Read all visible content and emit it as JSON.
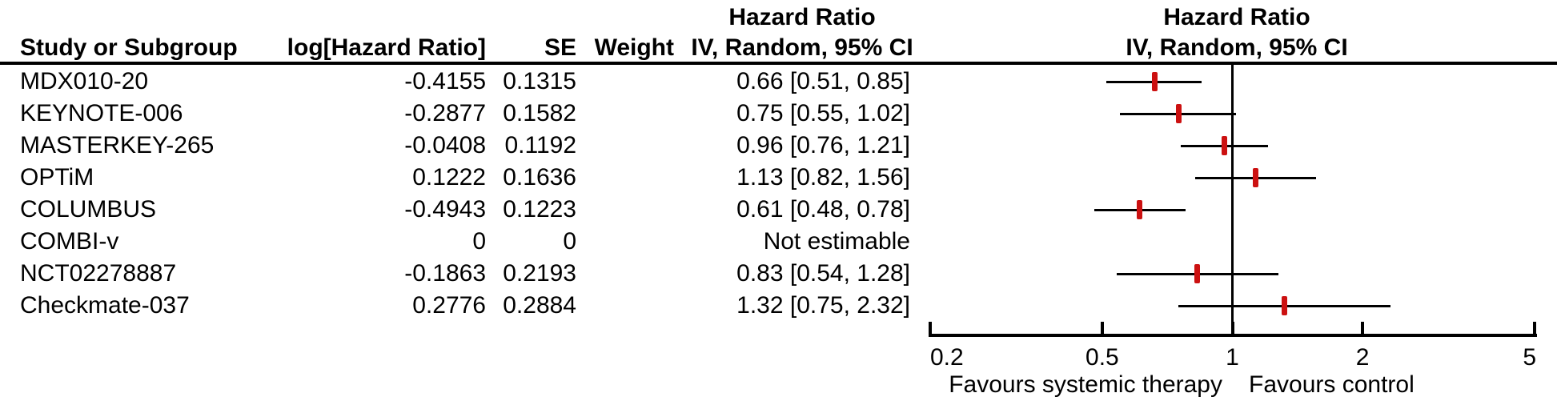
{
  "header": {
    "study": "Study or Subgroup",
    "log_hr": "log[Hazard Ratio]",
    "se": "SE",
    "weight": "Weight",
    "effect": "Hazard Ratio",
    "method": "IV, Random, 95% CI"
  },
  "colors": {
    "marker_red": "#cc1111",
    "line_black": "#000000"
  },
  "chart_data": {
    "type": "forest",
    "effect_measure": "Hazard Ratio",
    "model": "IV, Random, 95% CI",
    "x_scale": "log",
    "x_range": [
      0.2,
      5
    ],
    "null_line": 1,
    "x_ticks": [
      {
        "value": 0.2,
        "label": "0.2"
      },
      {
        "value": 0.5,
        "label": "0.5"
      },
      {
        "value": 1,
        "label": "1"
      },
      {
        "value": 2,
        "label": "2"
      },
      {
        "value": 5,
        "label": "5"
      }
    ],
    "favours_left": "Favours systemic therapy",
    "favours_right": "Favours control",
    "studies": [
      {
        "name": "MDX010-20",
        "log_hr": "-0.4155",
        "se": "0.1315",
        "weight": "",
        "ci_text": "0.66 [0.51, 0.85]",
        "hr": 0.66,
        "ci_low": 0.51,
        "ci_high": 0.85,
        "estimable": true
      },
      {
        "name": "KEYNOTE-006",
        "log_hr": "-0.2877",
        "se": "0.1582",
        "weight": "",
        "ci_text": "0.75 [0.55, 1.02]",
        "hr": 0.75,
        "ci_low": 0.55,
        "ci_high": 1.02,
        "estimable": true
      },
      {
        "name": "MASTERKEY-265",
        "log_hr": "-0.0408",
        "se": "0.1192",
        "weight": "",
        "ci_text": "0.96 [0.76, 1.21]",
        "hr": 0.96,
        "ci_low": 0.76,
        "ci_high": 1.21,
        "estimable": true
      },
      {
        "name": "OPTiM",
        "log_hr": "0.1222",
        "se": "0.1636",
        "weight": "",
        "ci_text": "1.13 [0.82, 1.56]",
        "hr": 1.13,
        "ci_low": 0.82,
        "ci_high": 1.56,
        "estimable": true
      },
      {
        "name": "COLUMBUS",
        "log_hr": "-0.4943",
        "se": "0.1223",
        "weight": "",
        "ci_text": "0.61 [0.48, 0.78]",
        "hr": 0.61,
        "ci_low": 0.48,
        "ci_high": 0.78,
        "estimable": true
      },
      {
        "name": "COMBI-v",
        "log_hr": "0",
        "se": "0",
        "weight": "",
        "ci_text": "Not estimable",
        "estimable": false
      },
      {
        "name": "NCT02278887",
        "log_hr": "-0.1863",
        "se": "0.2193",
        "weight": "",
        "ci_text": "0.83 [0.54, 1.28]",
        "hr": 0.83,
        "ci_low": 0.54,
        "ci_high": 1.28,
        "estimable": true
      },
      {
        "name": "Checkmate-037",
        "log_hr": "0.2776",
        "se": "0.2884",
        "weight": "",
        "ci_text": "1.32 [0.75, 2.32]",
        "hr": 1.32,
        "ci_low": 0.75,
        "ci_high": 2.32,
        "estimable": true
      }
    ]
  }
}
